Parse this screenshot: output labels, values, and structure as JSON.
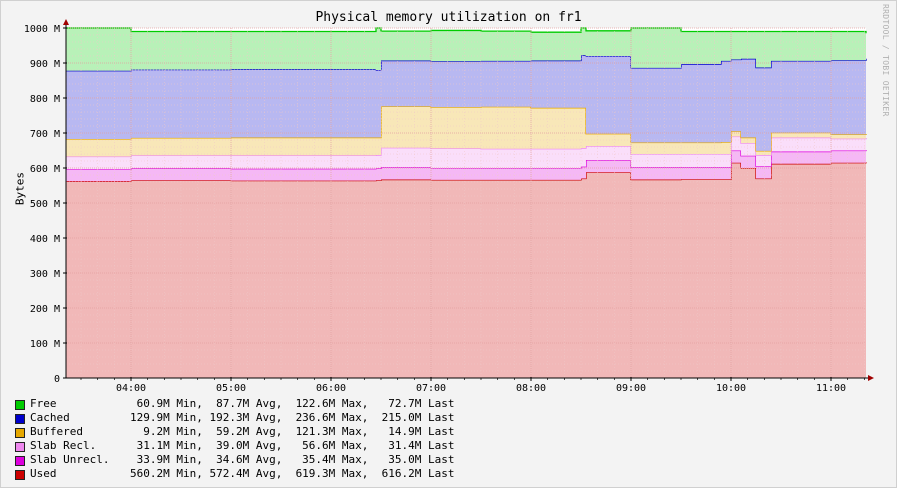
{
  "watermark": "RRDTOOL / TOBI OETIKER",
  "chart_data": {
    "type": "area",
    "title": "Physical memory utilization on fr1",
    "ylabel": "Bytes",
    "xlabel": "",
    "ylim": [
      0,
      1000
    ],
    "y_unit": "M",
    "y_ticks": [
      "0",
      "100 M",
      "200 M",
      "300 M",
      "400 M",
      "500 M",
      "600 M",
      "700 M",
      "800 M",
      "900 M",
      "1000 M"
    ],
    "x_ticks": [
      "04:00",
      "05:00",
      "06:00",
      "07:00",
      "08:00",
      "09:00",
      "10:00",
      "11:00"
    ],
    "x_tick_hours": [
      4,
      5,
      6,
      7,
      8,
      9,
      10,
      11
    ],
    "x_range_hours": [
      3.35,
      11.35
    ],
    "grid": true,
    "stacked": true,
    "colors": {
      "background": "#f3f3f3",
      "plot": "#ffffff",
      "grid": "#e3a0a0",
      "Free": "#00cc00",
      "Cached": "#0000cc",
      "Buffered": "#e6a800",
      "Slab Recl.": "#ee88ee",
      "Slab Unrecl.": "#dd00dd",
      "Used": "#cc0000"
    },
    "x": [
      3.35,
      4.0,
      5.0,
      6.0,
      6.45,
      6.5,
      7.0,
      7.5,
      8.0,
      8.5,
      8.55,
      9.0,
      9.5,
      9.9,
      10.0,
      10.1,
      10.25,
      10.4,
      11.0,
      11.35
    ],
    "series": [
      {
        "name": "Used",
        "values": [
          562,
          565,
          564,
          564,
          565,
          567,
          566,
          566,
          566,
          570,
          588,
          567,
          568,
          568,
          615,
          600,
          570,
          612,
          615,
          616
        ]
      },
      {
        "name": "Slab Unrecl.",
        "values": [
          34,
          34,
          34,
          34,
          34,
          35,
          34,
          34,
          34,
          34,
          35,
          35,
          34,
          34,
          35,
          35,
          35,
          35,
          35,
          35
        ]
      },
      {
        "name": "Slab Recl.",
        "values": [
          37,
          37,
          38,
          38,
          38,
          56,
          56,
          55,
          55,
          53,
          40,
          38,
          38,
          38,
          40,
          36,
          32,
          40,
          34,
          31
        ]
      },
      {
        "name": "Buffered",
        "values": [
          50,
          50,
          51,
          51,
          50,
          118,
          118,
          120,
          117,
          115,
          35,
          33,
          33,
          34,
          15,
          16,
          12,
          14,
          12,
          15
        ]
      },
      {
        "name": "Cached",
        "values": [
          195,
          195,
          195,
          195,
          193,
          131,
          131,
          131,
          135,
          150,
          222,
          213,
          224,
          232,
          205,
          225,
          238,
          205,
          212,
          215
        ]
      },
      {
        "name": "Free",
        "values": [
          122,
          109,
          108,
          108,
          120,
          84,
          88,
          85,
          81,
          78,
          72,
          114,
          93,
          84,
          80,
          78,
          103,
          84,
          82,
          73
        ]
      }
    ],
    "legend": [
      {
        "name": "Free",
        "min": "60.9M",
        "avg": "87.7M",
        "max": "122.6M",
        "last": "72.7M"
      },
      {
        "name": "Cached",
        "min": "129.9M",
        "avg": "192.3M",
        "max": "236.6M",
        "last": "215.0M"
      },
      {
        "name": "Buffered",
        "min": "9.2M",
        "avg": "59.2M",
        "max": "121.3M",
        "last": "14.9M"
      },
      {
        "name": "Slab Recl.",
        "min": "31.1M",
        "avg": "39.0M",
        "max": "56.6M",
        "last": "31.4M"
      },
      {
        "name": "Slab Unrecl.",
        "min": "33.9M",
        "avg": "34.6M",
        "max": "35.4M",
        "last": "35.0M"
      },
      {
        "name": "Used",
        "min": "560.2M",
        "avg": "572.4M",
        "max": "619.3M",
        "last": "616.2M"
      }
    ],
    "stat_labels": {
      "min": "Min,",
      "avg": "Avg,",
      "max": "Max,",
      "last": "Last"
    }
  }
}
